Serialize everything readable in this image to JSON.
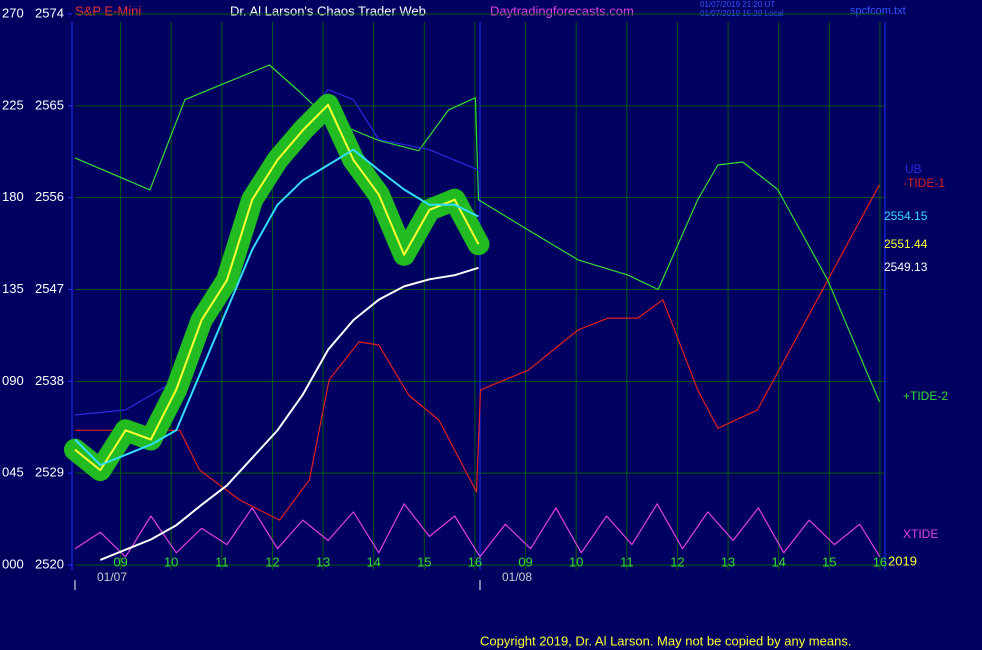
{
  "chart_data": {
    "type": "line",
    "symbol": "S&P E-Mini",
    "title": "Dr. Al Larson's Chaos Trader Web",
    "site": "Daytradingforecasts.com",
    "timestamps": [
      "01/07/2019 21:20 UT",
      "01/07/2019 15:20 Local"
    ],
    "file": "spcfcom.txt",
    "date_labels": [
      "01/07",
      "01/08"
    ],
    "year": "2019",
    "copyright": "Copyright 2019, Dr. Al Larson. May not be copied by any means.",
    "xlim": [
      0,
      16
    ],
    "xticks": [
      {
        "value": 0.9,
        "label": "09"
      },
      {
        "value": 1.9,
        "label": "10"
      },
      {
        "value": 2.9,
        "label": "11"
      },
      {
        "value": 3.9,
        "label": "12"
      },
      {
        "value": 4.9,
        "label": "13"
      },
      {
        "value": 5.9,
        "label": "14"
      },
      {
        "value": 6.9,
        "label": "15"
      },
      {
        "value": 7.9,
        "label": "16"
      },
      {
        "value": 8.9,
        "label": "09"
      },
      {
        "value": 9.9,
        "label": "10"
      },
      {
        "value": 10.9,
        "label": "11"
      },
      {
        "value": 11.9,
        "label": "12"
      },
      {
        "value": 12.9,
        "label": "13"
      },
      {
        "value": 13.9,
        "label": "14"
      },
      {
        "value": 14.9,
        "label": "15"
      },
      {
        "value": 15.9,
        "label": "16"
      }
    ],
    "ylim": [
      2520,
      2574
    ],
    "yticks": [
      2520,
      2529,
      2538,
      2547,
      2556,
      2565,
      2574
    ],
    "y2lim": [
      0,
      270
    ],
    "y2ticks": [
      {
        "value": 0,
        "label": "000"
      },
      {
        "value": 45,
        "label": "045"
      },
      {
        "value": 90,
        "label": "090"
      },
      135,
      180,
      225,
      270
    ],
    "grid": true,
    "series": [
      {
        "name": "-TIDE-1",
        "color": "#e02020",
        "axis": "y2",
        "x": [
          0,
          2.07,
          2.46,
          3.25,
          4.04,
          4.63,
          5.02,
          5.61,
          6.0,
          6.59,
          7.19,
          7.93,
          8.01,
          8.96,
          9.94,
          10.53,
          11.12,
          11.61,
          12.3,
          12.7,
          13.48,
          14.66,
          15.89
        ],
        "values": [
          66,
          66,
          46.6,
          31.9,
          22,
          41.7,
          90.7,
          109.3,
          107.8,
          83.3,
          71,
          35.8,
          85.8,
          95.6,
          115.2,
          121,
          121,
          130,
          85.8,
          67,
          76,
          130,
          186.3
        ]
      },
      {
        "name": "+TIDE-2",
        "color": "#33dd33",
        "axis": "y2",
        "x": [
          0,
          1.48,
          2.17,
          2.85,
          3.84,
          4.43,
          5.02,
          6.0,
          6.79,
          7.38,
          7.91,
          7.97,
          8.96,
          9.94,
          10.93,
          11.52,
          12.3,
          12.7,
          13.19,
          13.88,
          14.86,
          15.89
        ],
        "values": [
          199.5,
          183.8,
          228,
          235,
          245,
          232,
          218,
          208,
          203,
          223,
          229,
          179,
          164,
          149.5,
          142,
          135,
          179,
          196,
          197.5,
          184,
          140,
          80
        ]
      },
      {
        "name": "XTIDE",
        "color": "#e040e0",
        "axis": "y2",
        "x": [
          0,
          0.5,
          1,
          1.5,
          2,
          2.5,
          3,
          3.5,
          4,
          4.5,
          5,
          5.5,
          6,
          6.5,
          7,
          7.5,
          8,
          8.5,
          9,
          9.5,
          10,
          10.5,
          11,
          11.5,
          12,
          12.5,
          13,
          13.5,
          14,
          14.5,
          15,
          15.5,
          15.9
        ],
        "values": [
          8,
          16,
          4,
          24,
          6,
          18,
          10,
          28,
          8,
          22,
          12,
          26,
          6,
          30,
          14,
          24,
          4,
          20,
          8,
          28,
          6,
          24,
          10,
          30,
          8,
          26,
          12,
          28,
          6,
          22,
          10,
          20,
          4
        ]
      },
      {
        "name": "UB",
        "color": "#2a2ae0",
        "x": [
          0,
          1,
          2,
          3,
          4,
          5,
          5.5,
          6,
          7,
          7.97
        ],
        "values": [
          2534.7,
          2535.2,
          2538.1,
          2547.0,
          2560.2,
          2566.6,
          2565.6,
          2561.7,
          2560.7,
          2558.7
        ]
      },
      {
        "color": "#ffff33",
        "band_color": "#22bb22",
        "x": [
          0,
          0.5,
          1,
          1.5,
          2,
          2.5,
          3,
          3.5,
          4,
          4.5,
          5,
          5.5,
          6,
          6.5,
          7,
          7.5,
          7.97
        ],
        "values": [
          2531.3,
          2529.3,
          2533.2,
          2532.3,
          2537.2,
          2544.0,
          2547.9,
          2555.8,
          2559.7,
          2562.6,
          2565.1,
          2559.7,
          2556.3,
          2550.4,
          2554.8,
          2555.8,
          2551.44
        ]
      },
      {
        "color": "#33ddff",
        "x": [
          0,
          0.5,
          1,
          1.5,
          2,
          2.5,
          3,
          3.5,
          4,
          4.5,
          5,
          5.5,
          6,
          6.5,
          7,
          7.5,
          7.97
        ],
        "values": [
          2532.3,
          2529.8,
          2530.8,
          2531.8,
          2533.2,
          2539.1,
          2545.0,
          2550.9,
          2555.3,
          2557.7,
          2559.2,
          2560.7,
          2558.7,
          2556.8,
          2555.3,
          2555.3,
          2554.15
        ]
      },
      {
        "color": "#ffffff",
        "x": [
          0.5,
          1,
          1.5,
          2,
          2.5,
          3,
          3.5,
          4,
          4.5,
          5,
          5.5,
          6,
          6.5,
          7,
          7.5,
          7.97
        ],
        "values": [
          2520.5,
          2521.5,
          2522.5,
          2523.9,
          2525.9,
          2527.8,
          2530.5,
          2533.2,
          2536.7,
          2541.1,
          2544.0,
          2546.0,
          2547.3,
          2548.0,
          2548.4,
          2549.13
        ]
      }
    ]
  }
}
